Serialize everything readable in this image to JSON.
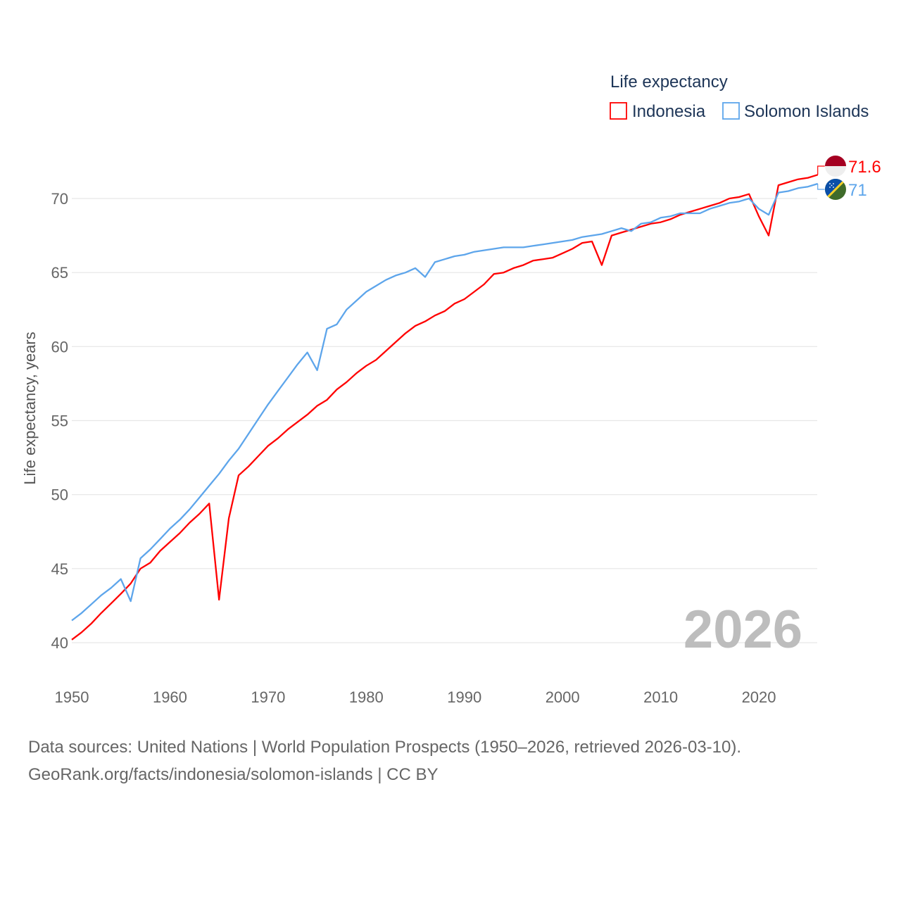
{
  "chart_data": {
    "type": "line",
    "title": "Life expectancy",
    "xlabel": "",
    "ylabel": "Life expectancy, years",
    "xlim": [
      1950,
      2026
    ],
    "ylim": [
      40,
      72
    ],
    "xticks": [
      1950,
      1960,
      1970,
      1980,
      1990,
      2000,
      2010,
      2020
    ],
    "yticks": [
      40,
      45,
      50,
      55,
      60,
      65,
      70
    ],
    "grid": true,
    "legend_position": "top-right",
    "current_year": "2026",
    "x": [
      1950,
      1951,
      1952,
      1953,
      1954,
      1955,
      1956,
      1957,
      1958,
      1959,
      1960,
      1961,
      1962,
      1963,
      1964,
      1965,
      1966,
      1967,
      1968,
      1969,
      1970,
      1971,
      1972,
      1973,
      1974,
      1975,
      1976,
      1977,
      1978,
      1979,
      1980,
      1981,
      1982,
      1983,
      1984,
      1985,
      1986,
      1987,
      1988,
      1989,
      1990,
      1991,
      1992,
      1993,
      1994,
      1995,
      1996,
      1997,
      1998,
      1999,
      2000,
      2001,
      2002,
      2003,
      2004,
      2005,
      2006,
      2007,
      2008,
      2009,
      2010,
      2011,
      2012,
      2013,
      2014,
      2015,
      2016,
      2017,
      2018,
      2019,
      2020,
      2021,
      2022,
      2023,
      2024,
      2025,
      2026
    ],
    "series": [
      {
        "name": "Indonesia",
        "color": "#ff0000",
        "end_label": "71.6",
        "values": [
          40.2,
          40.7,
          41.3,
          42.0,
          42.65,
          43.3,
          44.0,
          45.0,
          45.4,
          46.2,
          46.8,
          47.4,
          48.1,
          48.7,
          49.4,
          42.9,
          48.4,
          51.3,
          51.9,
          52.6,
          53.3,
          53.8,
          54.4,
          54.9,
          55.4,
          56.0,
          56.4,
          57.1,
          57.6,
          58.2,
          58.7,
          59.1,
          59.7,
          60.3,
          60.9,
          61.4,
          61.7,
          62.1,
          62.4,
          62.9,
          63.2,
          63.7,
          64.2,
          64.9,
          65.0,
          65.3,
          65.5,
          65.8,
          65.9,
          66.0,
          66.3,
          66.6,
          67.0,
          67.1,
          65.5,
          67.5,
          67.7,
          67.9,
          68.1,
          68.3,
          68.4,
          68.6,
          68.9,
          69.1,
          69.3,
          69.5,
          69.7,
          70.0,
          70.1,
          70.3,
          68.8,
          67.5,
          70.9,
          71.1,
          71.3,
          71.4,
          71.6
        ]
      },
      {
        "name": "Solomon Islands",
        "color": "#5da5eb",
        "end_label": "71",
        "values": [
          41.5,
          42.0,
          42.6,
          43.2,
          43.7,
          44.3,
          42.8,
          45.7,
          46.3,
          47.0,
          47.7,
          48.3,
          49.0,
          49.8,
          50.6,
          51.4,
          52.3,
          53.1,
          54.1,
          55.1,
          56.1,
          57.0,
          57.9,
          58.8,
          59.6,
          58.4,
          61.2,
          61.5,
          62.5,
          63.1,
          63.7,
          64.1,
          64.5,
          64.8,
          65.0,
          65.3,
          64.7,
          65.7,
          65.9,
          66.1,
          66.2,
          66.4,
          66.5,
          66.6,
          66.7,
          66.7,
          66.7,
          66.8,
          66.9,
          67.0,
          67.1,
          67.2,
          67.4,
          67.5,
          67.6,
          67.8,
          68.0,
          67.8,
          68.3,
          68.4,
          68.7,
          68.8,
          69.0,
          69.0,
          69.0,
          69.3,
          69.5,
          69.7,
          69.8,
          70.0,
          69.3,
          68.9,
          70.4,
          70.5,
          70.7,
          70.8,
          71.0
        ]
      }
    ]
  },
  "footer": {
    "line1": "Data sources: United Nations | World Population Prospects (1950–2026, retrieved 2026-03-10).",
    "line2": "GeoRank.org/facts/indonesia/solomon-islands | CC BY"
  }
}
